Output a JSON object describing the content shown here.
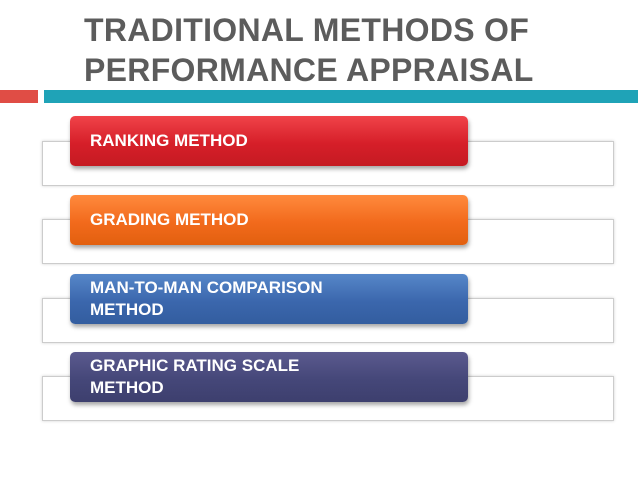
{
  "title": {
    "line1": "TRADITIONAL METHODS OF",
    "line2": "PERFORMANCE APPRAISAL"
  },
  "colors": {
    "title_text": "#5c5c5c",
    "accent_red": "#e04d45",
    "accent_teal": "#1fa3b7",
    "item_red": "#d61f29",
    "item_orange": "#f26a1c",
    "item_blue": "#3b67ad",
    "item_purple": "#454779"
  },
  "items": [
    {
      "lines": [
        "RANKING METHOD"
      ]
    },
    {
      "lines": [
        "GRADING METHOD"
      ]
    },
    {
      "lines": [
        "MAN-TO-MAN COMPARISON",
        "METHOD"
      ]
    },
    {
      "lines": [
        "GRAPHIC RATING SCALE",
        "METHOD"
      ]
    }
  ]
}
